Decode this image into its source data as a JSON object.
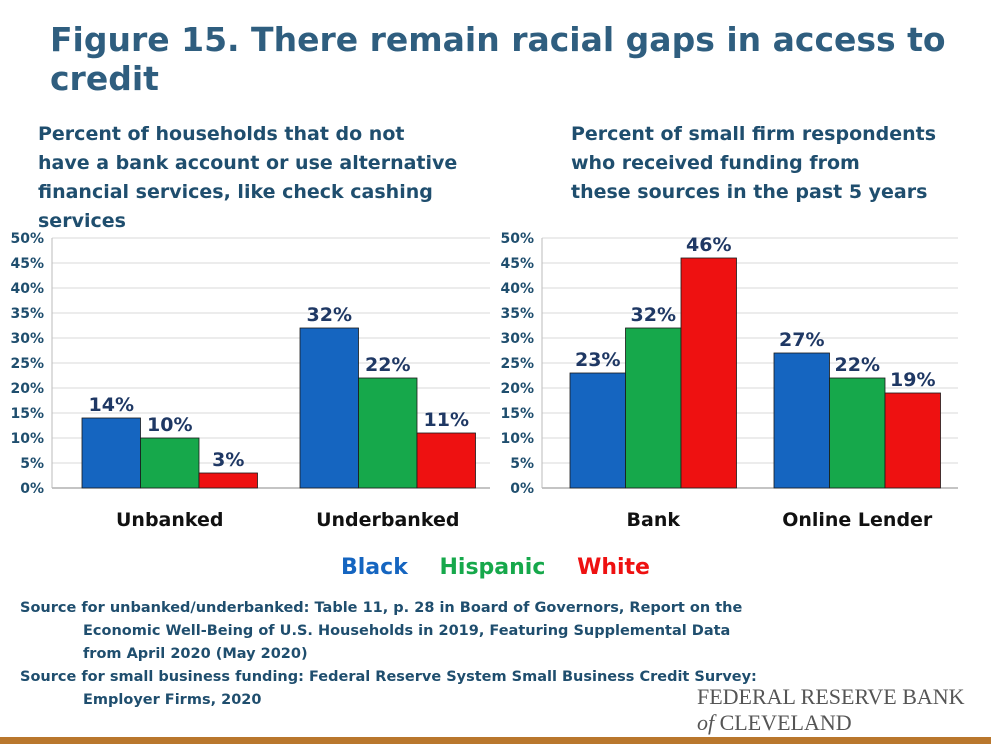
{
  "title": "Figure 15. There remain racial gaps in access to credit",
  "legend": [
    {
      "name": "Black",
      "color": "#1565c0"
    },
    {
      "name": "Hispanic",
      "color": "#16a84b"
    },
    {
      "name": "White",
      "color": "#ee1111"
    }
  ],
  "chart_data": [
    {
      "type": "bar",
      "title": "Percent of households that do not have a bank account or use alternative financial services, like check cashing services",
      "title_lines": [
        "Percent of households that do not",
        "have a bank account or use alternative",
        "financial services, like check cashing services"
      ],
      "categories": [
        "Unbanked",
        "Underbanked"
      ],
      "series": [
        {
          "name": "Black",
          "values": [
            14,
            32
          ],
          "color": "#1565c0"
        },
        {
          "name": "Hispanic",
          "values": [
            10,
            22
          ],
          "color": "#16a84b"
        },
        {
          "name": "White",
          "values": [
            3,
            11
          ],
          "color": "#ee1111"
        }
      ],
      "ylim": [
        0,
        50
      ],
      "yticks": [
        "0%",
        "5%",
        "10%",
        "15%",
        "20%",
        "25%",
        "30%",
        "35%",
        "40%",
        "45%",
        "50%"
      ],
      "data_labels": [
        [
          "14%",
          "32%"
        ],
        [
          "10%",
          "22%"
        ],
        [
          "3%",
          "11%"
        ]
      ],
      "grid": true
    },
    {
      "type": "bar",
      "title": "Percent of small firm respondents who received funding from these sources in the past 5 years",
      "title_lines": [
        "Percent of small firm respondents",
        "who received funding from",
        "these sources in the past 5 years"
      ],
      "categories": [
        "Bank",
        "Online Lender"
      ],
      "series": [
        {
          "name": "Black",
          "values": [
            23,
            27
          ],
          "color": "#1565c0"
        },
        {
          "name": "Hispanic",
          "values": [
            32,
            22
          ],
          "color": "#16a84b"
        },
        {
          "name": "White",
          "values": [
            46,
            19
          ],
          "color": "#ee1111"
        }
      ],
      "ylim": [
        0,
        50
      ],
      "yticks": [
        "0%",
        "5%",
        "10%",
        "15%",
        "20%",
        "25%",
        "30%",
        "35%",
        "40%",
        "45%",
        "50%"
      ],
      "data_labels": [
        [
          "23%",
          "27%"
        ],
        [
          "32%",
          "22%"
        ],
        [
          "46%",
          "19%"
        ]
      ],
      "grid": true
    }
  ],
  "sources": [
    "Source for unbanked/underbanked: Table 11, p. 28 in Board of Governors, Report on the",
    "Economic Well-Being of U.S. Households in 2019, Featuring Supplemental Data",
    "from April 2020 (May 2020)",
    "Source for small business funding: Federal Reserve System Small Business Credit Survey:",
    "Employer Firms, 2020"
  ],
  "logo": {
    "line1": "FEDERAL RESERVE BANK",
    "of": "of",
    "line2": "CLEVELAND"
  }
}
